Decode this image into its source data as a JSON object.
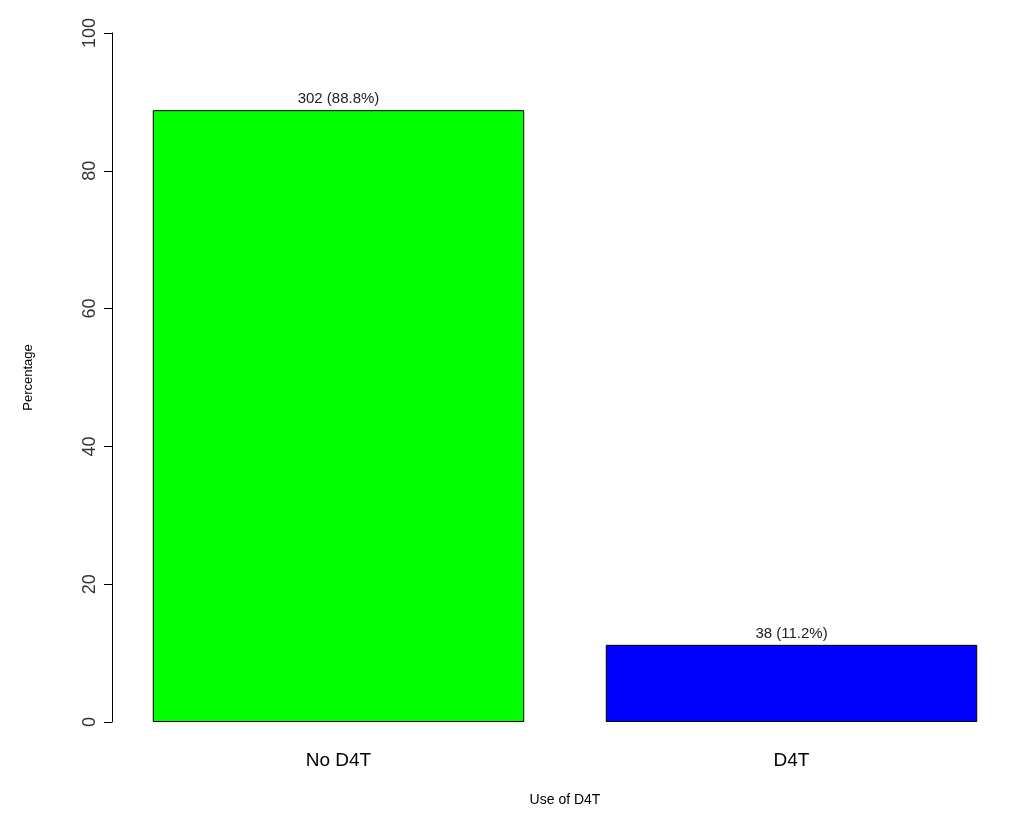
{
  "chart_data": {
    "type": "bar",
    "xlabel": "Use of D4T",
    "ylabel": "Percentage",
    "categories": [
      "No D4T",
      "D4T"
    ],
    "values": [
      88.8,
      11.2
    ],
    "colors": [
      "#00ff00",
      "#0000ff"
    ],
    "value_labels": [
      "302 (88.8%)",
      "38 (11.2%)"
    ],
    "ylim": [
      0,
      100
    ],
    "yticks": [
      0,
      20,
      40,
      60,
      80,
      100
    ],
    "grid": false
  }
}
